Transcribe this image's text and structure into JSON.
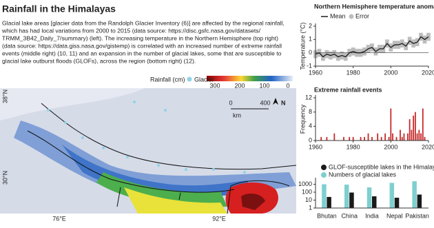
{
  "title": "Rainfall in the Himalayas",
  "text_lines": [
    "Glacial lake areas [glacier data from the Randolph Glacier Inventory (6)] are affected by the regional rainfall,",
    "which has had local variations from 2000 to 2015 (data source: https://disc.gsfc.nasa.gov/datasets/",
    "TRMM_3B42_Daily_7/summary) (left). The increasing temperature in the Northern Hemisphere (top right)",
    "(data source:  https://data.giss.nasa.gov/gistemp) is correlated with an increased number of extreme rainfall",
    "events (middle right) (10, 11) and an expansion in the number of glacial lakes, some that are susceptible to",
    "glacial lake outburst floods (GLOFs), across the region (bottom right) (12)."
  ],
  "map": {
    "lat_labels": [
      "38°N",
      "30°N"
    ],
    "lon_labels": [
      "76°E",
      "92°E"
    ],
    "colorbar": {
      "label": "Rainfall (cm)",
      "ticks": [
        "300",
        "200",
        "100",
        "0"
      ]
    },
    "legend": "Glacier",
    "scale": [
      "0",
      "400",
      "km"
    ],
    "north": "N"
  },
  "chart_data": [
    {
      "type": "line",
      "title": "Northern Hemisphere temperature anomaly",
      "y_label": "Temperature (°C)",
      "x": [
        1960,
        1962,
        1964,
        1966,
        1968,
        1970,
        1972,
        1974,
        1976,
        1978,
        1980,
        1982,
        1984,
        1986,
        1988,
        1990,
        1992,
        1994,
        1996,
        1998,
        2000,
        2002,
        2004,
        2006,
        2008,
        2010,
        2012,
        2014,
        2016,
        2018,
        2020
      ],
      "series": [
        {
          "name": "Mean",
          "color": "#1a1a1a",
          "values": [
            -0.1,
            0.0,
            -0.3,
            -0.1,
            -0.2,
            -0.1,
            -0.3,
            -0.2,
            -0.3,
            0.0,
            0.1,
            0.0,
            0.0,
            0.1,
            0.3,
            0.4,
            0.1,
            0.3,
            0.3,
            0.7,
            0.4,
            0.6,
            0.6,
            0.7,
            0.5,
            0.9,
            0.7,
            0.8,
            1.2,
            1.0,
            1.2
          ]
        },
        {
          "name": "Error",
          "color": "#bdbdbd",
          "values": [
            0.3,
            0.3,
            0.3,
            0.3,
            0.3,
            0.3,
            0.3,
            0.3,
            0.3,
            0.3,
            0.3,
            0.3,
            0.3,
            0.3,
            0.3,
            0.3,
            0.3,
            0.3,
            0.3,
            0.3,
            0.3,
            0.3,
            0.3,
            0.3,
            0.3,
            0.3,
            0.3,
            0.3,
            0.3,
            0.3,
            0.3
          ]
        }
      ],
      "xlim": [
        1960,
        2020
      ],
      "xticks": [
        1960,
        1980,
        2000,
        2020
      ],
      "ylim": [
        -1,
        2
      ],
      "yticks": [
        -1,
        0,
        1,
        2
      ]
    },
    {
      "type": "bar",
      "title": "Extreme rainfall events",
      "y_label": "Frequency",
      "color": "#c62828",
      "x": [
        1963,
        1966,
        1970,
        1975,
        1978,
        1980,
        1984,
        1986,
        1988,
        1990,
        1993,
        1995,
        1997,
        1999,
        2000,
        2001,
        2003,
        2005,
        2006,
        2007,
        2009,
        2010,
        2011,
        2012,
        2013,
        2014,
        2015,
        2016,
        2017,
        2018
      ],
      "values": [
        1,
        1,
        2,
        1,
        1,
        1,
        1,
        1,
        2,
        1,
        2,
        1,
        2,
        1,
        9,
        2,
        1,
        3,
        1,
        2,
        2,
        6,
        3,
        7,
        8,
        2,
        3,
        2,
        9,
        1
      ],
      "xlim": [
        1960,
        2020
      ],
      "xticks": [
        1960,
        1980,
        2000,
        2020
      ],
      "ylim": [
        0,
        12
      ],
      "yticks": [
        0,
        4,
        8,
        12
      ]
    },
    {
      "type": "grouped_bar",
      "log_scale": true,
      "categories": [
        "Bhutan",
        "China",
        "India",
        "Nepal",
        "Pakistan"
      ],
      "series": [
        {
          "name": "GLOF-susceptible lakes in the Himalayas",
          "color": "#1a1a1a",
          "values": [
            25,
            90,
            30,
            20,
            50
          ]
        },
        {
          "name": "Numbers of glacial lakes",
          "color": "#7fcfcf",
          "values": [
            1000,
            900,
            400,
            1500,
            2400
          ]
        }
      ],
      "ylim": [
        1,
        3000
      ],
      "yticks": [
        1,
        10,
        100,
        1000
      ]
    }
  ]
}
